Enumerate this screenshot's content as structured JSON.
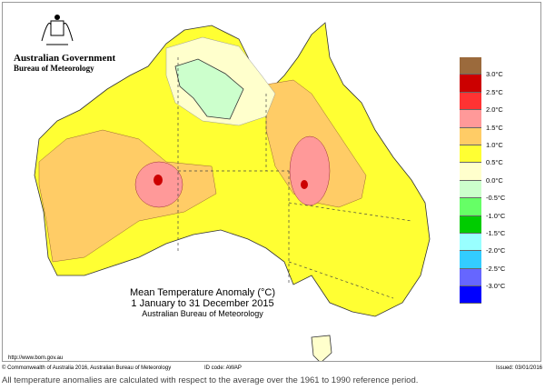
{
  "header": {
    "org": "Australian Government",
    "bureau": "Bureau of Meteorology"
  },
  "map": {
    "title": "Mean Temperature Anomaly (°C)",
    "period": "1 January to 31 December 2015",
    "source": "Australian Bureau of Meteorology",
    "url": "http://www.bom.gov.au"
  },
  "legend": {
    "colors": [
      "#9b6a3c",
      "#cc0000",
      "#ff3333",
      "#ff9999",
      "#ffcc66",
      "#ffff33",
      "#ffffcc",
      "#ccffcc",
      "#66ff66",
      "#00cc00",
      "#99ffff",
      "#33ccff",
      "#6666ff",
      "#0000ff"
    ],
    "labels": [
      "3.0°C",
      "2.5°C",
      "2.0°C",
      "1.5°C",
      "1.0°C",
      "0.5°C",
      "0.0°C",
      "-0.5°C",
      "-1.0°C",
      "-1.5°C",
      "-2.0°C",
      "-2.5°C",
      "-3.0°C"
    ]
  },
  "footer": {
    "copyright": "© Commonwealth of Australia 2016, Australian Bureau of Meteorology",
    "id_code": "ID code: AWAP",
    "issued": "Issued: 03/01/2016"
  },
  "note": "All temperature anomalies are calculated with respect to the average over the 1961 to 1990 reference period."
}
